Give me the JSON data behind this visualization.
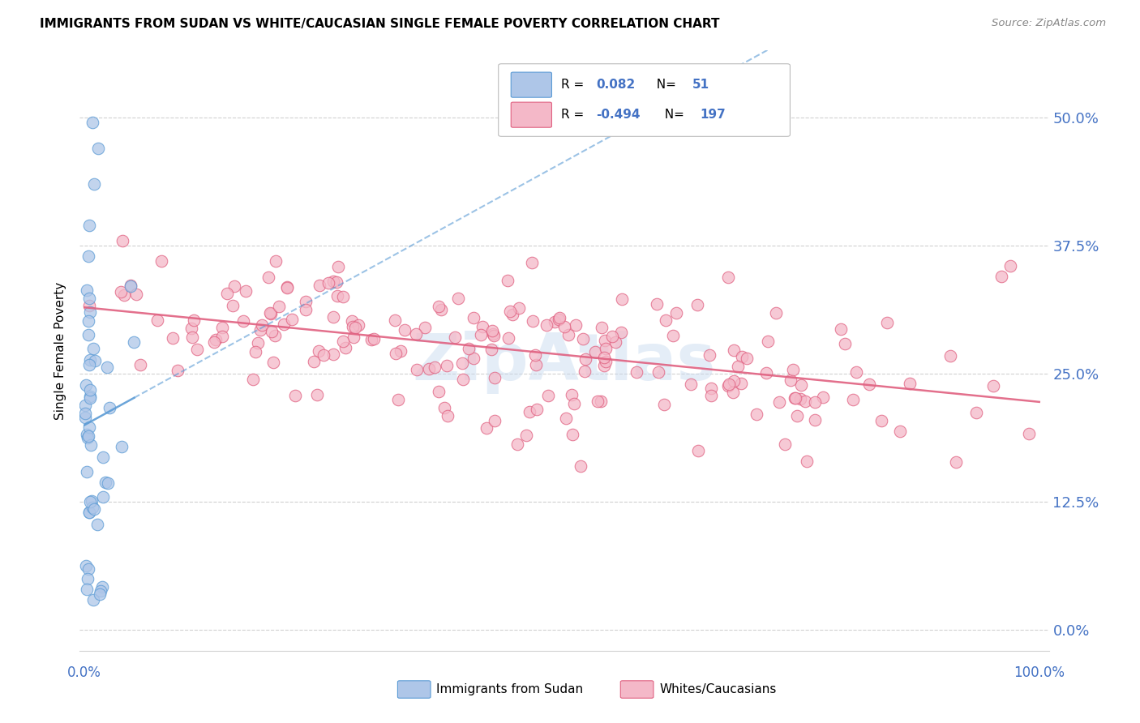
{
  "title": "IMMIGRANTS FROM SUDAN VS WHITE/CAUCASIAN SINGLE FEMALE POVERTY CORRELATION CHART",
  "source": "Source: ZipAtlas.com",
  "ylabel": "Single Female Poverty",
  "yticks": [
    0.0,
    0.125,
    0.25,
    0.375,
    0.5
  ],
  "xlim": [
    -0.005,
    1.01
  ],
  "ylim": [
    -0.02,
    0.565
  ],
  "color_sudan": "#aec6e8",
  "color_sudan_line": "#5b9bd5",
  "color_white": "#f4b8c8",
  "color_white_line": "#e06080",
  "color_axis": "#4472c4",
  "watermark": "ZipAtlas",
  "seed": 7
}
